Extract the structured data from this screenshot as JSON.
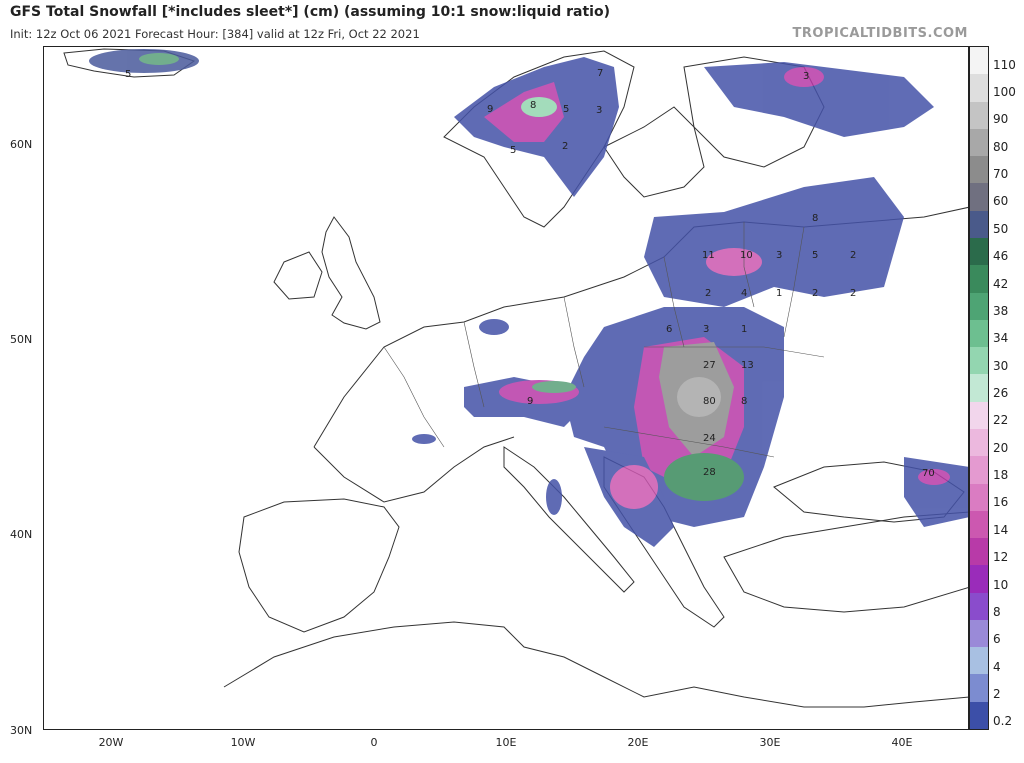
{
  "header": {
    "title": "GFS Total Snowfall [*includes sleet*] (cm) (assuming 10:1 snow:liquid ratio)",
    "subtitle": "Init: 12z Oct 06 2021   Forecast Hour: [384]   valid at 12z Fri, Oct 22 2021",
    "brand": "TROPICALTIDBITS.COM"
  },
  "axes": {
    "lat_labels": [
      "60N",
      "50N",
      "40N",
      "30N"
    ],
    "lon_labels": [
      "20W",
      "10W",
      "0",
      "10E",
      "20E",
      "30E",
      "40E"
    ]
  },
  "colorbar": {
    "labels": [
      "110",
      "100",
      "90",
      "80",
      "70",
      "60",
      "50",
      "46",
      "42",
      "38",
      "34",
      "30",
      "26",
      "22",
      "20",
      "18",
      "16",
      "14",
      "12",
      "10",
      "8",
      "6",
      "4",
      "2",
      "0.2"
    ],
    "colors": [
      "#f4f4f4",
      "#dedede",
      "#c4c4c4",
      "#a8a8a8",
      "#8c8c8c",
      "#707080",
      "#4a5a8a",
      "#2b6b4b",
      "#3a8a5c",
      "#4ea474",
      "#6dbf90",
      "#93d6b0",
      "#c2e8d4",
      "#f2d6ec",
      "#ecb8de",
      "#e49ad0",
      "#da7cc2",
      "#cc58b0",
      "#b83aa8",
      "#9a2cba",
      "#8a4ccc",
      "#9a8ad8",
      "#a8c0e2",
      "#7c8cd0",
      "#3c4fa8"
    ]
  },
  "snow_values": [
    {
      "t": "5",
      "area": "iceland"
    },
    {
      "t": "7",
      "area": "norway"
    },
    {
      "t": "8",
      "area": "norway"
    },
    {
      "t": "9",
      "area": "norway"
    },
    {
      "t": "5",
      "area": "norway"
    },
    {
      "t": "3",
      "area": "sweden"
    },
    {
      "t": "5",
      "area": "norway"
    },
    {
      "t": "2",
      "area": "sweden"
    },
    {
      "t": "8",
      "area": "russia"
    },
    {
      "t": "3",
      "area": "russia"
    },
    {
      "t": "2",
      "area": "russia"
    },
    {
      "t": "10",
      "area": "belarus"
    },
    {
      "t": "11",
      "area": "belarus"
    },
    {
      "t": "3",
      "area": "belarus"
    },
    {
      "t": "5",
      "area": "belarus"
    },
    {
      "t": "2",
      "area": "belarus"
    },
    {
      "t": "4",
      "area": "belarus"
    },
    {
      "t": "1",
      "area": "belarus"
    },
    {
      "t": "2",
      "area": "belarus"
    },
    {
      "t": "2",
      "area": "russia"
    },
    {
      "t": "6",
      "area": "poland"
    },
    {
      "t": "3",
      "area": "poland"
    },
    {
      "t": "1",
      "area": "ukraine"
    },
    {
      "t": "27",
      "area": "carpathians"
    },
    {
      "t": "13",
      "area": "ukraine"
    },
    {
      "t": "80",
      "area": "carpathians"
    },
    {
      "t": "8",
      "area": "romania"
    },
    {
      "t": "24",
      "area": "romania"
    },
    {
      "t": "28",
      "area": "balkans"
    },
    {
      "t": "70",
      "area": "caucasus"
    },
    {
      "t": "9",
      "area": "alps"
    }
  ]
}
